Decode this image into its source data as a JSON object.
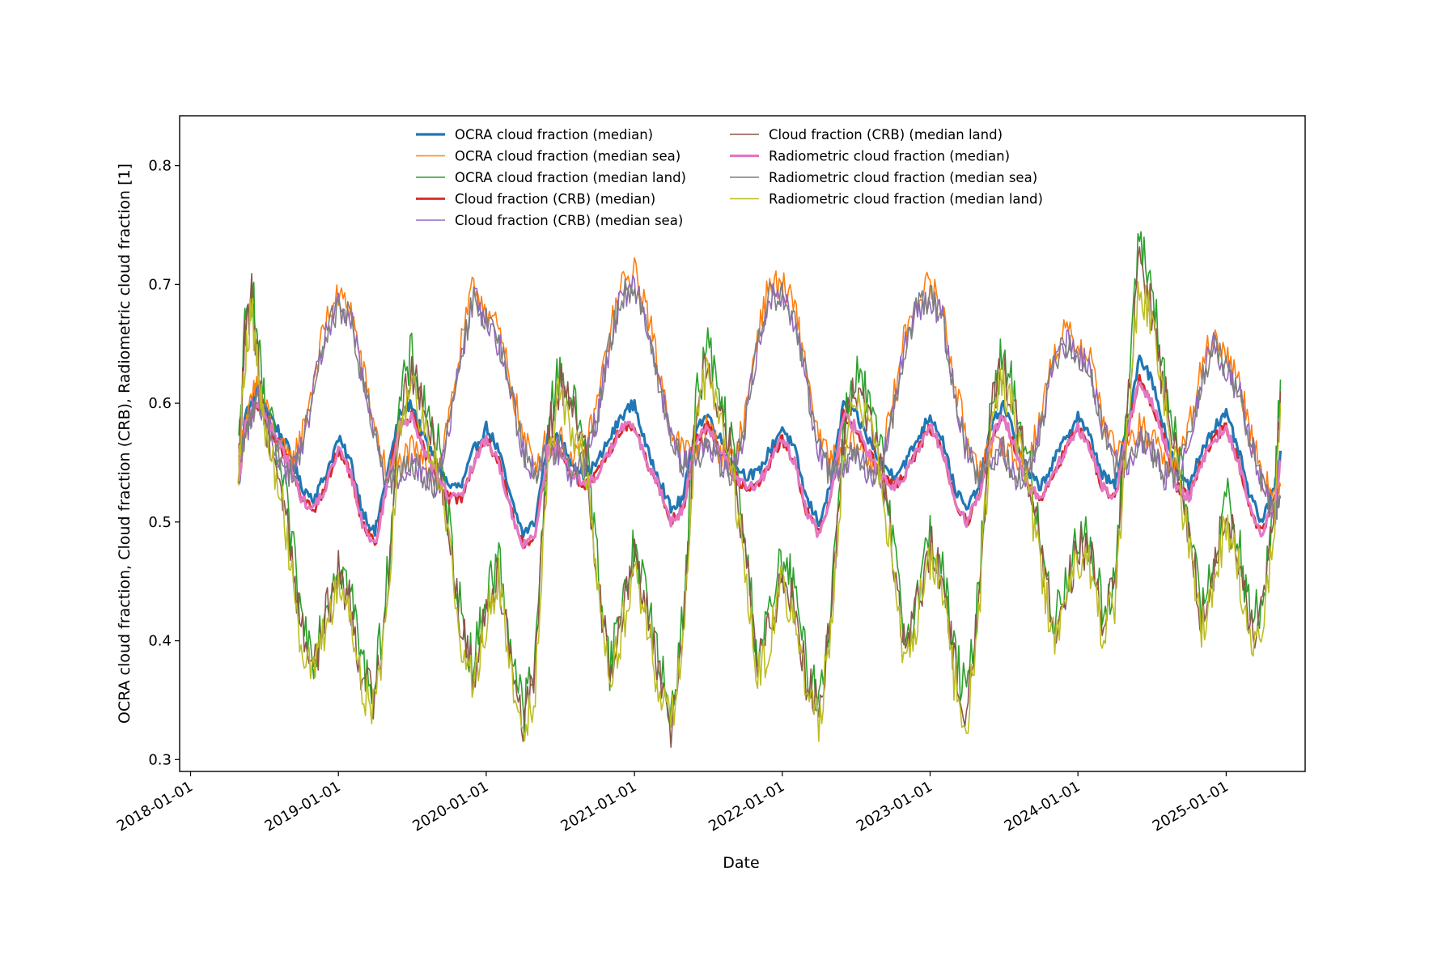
{
  "chart_data": {
    "type": "line",
    "title": "",
    "xlabel": "Date",
    "ylabel": "OCRA cloud fraction, Cloud fraction (CRB), Radiometric cloud fraction [1]",
    "x_axis": {
      "scale": "date",
      "range": [
        "2017-12-05",
        "2025-07-15"
      ],
      "ticks": [
        "2018-01-01",
        "2019-01-01",
        "2020-01-01",
        "2021-01-01",
        "2022-01-01",
        "2023-01-01",
        "2024-01-01",
        "2025-01-01"
      ]
    },
    "y_axis": {
      "range": [
        0.29,
        0.842
      ],
      "ticks": [
        0.3,
        0.4,
        0.5,
        0.6,
        0.7,
        0.8
      ],
      "tick_labels": [
        "0.3",
        "0.4",
        "0.5",
        "0.6",
        "0.7",
        "0.8"
      ]
    },
    "grid": false,
    "legend": {
      "placement": "top-center",
      "columns": 2
    },
    "x": [
      "2018-04-30",
      "2018-05-15",
      "2018-06-01",
      "2018-06-15",
      "2018-07-01",
      "2018-08-01",
      "2018-09-01",
      "2018-10-01",
      "2018-11-01",
      "2018-12-01",
      "2019-01-01",
      "2019-02-01",
      "2019-03-01",
      "2019-04-01",
      "2019-05-01",
      "2019-06-01",
      "2019-07-01",
      "2019-08-01",
      "2019-09-01",
      "2019-10-01",
      "2019-11-01",
      "2019-12-01",
      "2020-01-01",
      "2020-02-01",
      "2020-03-01",
      "2020-04-01",
      "2020-05-01",
      "2020-06-01",
      "2020-07-01",
      "2020-08-01",
      "2020-09-01",
      "2020-10-01",
      "2020-11-01",
      "2020-12-01",
      "2021-01-01",
      "2021-02-01",
      "2021-03-01",
      "2021-04-01",
      "2021-05-01",
      "2021-06-01",
      "2021-07-01",
      "2021-08-01",
      "2021-09-01",
      "2021-10-01",
      "2021-11-01",
      "2021-12-01",
      "2022-01-01",
      "2022-02-01",
      "2022-03-01",
      "2022-04-01",
      "2022-05-01",
      "2022-06-01",
      "2022-07-01",
      "2022-08-01",
      "2022-09-01",
      "2022-10-01",
      "2022-11-01",
      "2022-12-01",
      "2023-01-01",
      "2023-02-01",
      "2023-03-01",
      "2023-04-01",
      "2023-05-01",
      "2023-06-01",
      "2023-07-01",
      "2023-08-01",
      "2023-09-01",
      "2023-10-01",
      "2023-11-01",
      "2023-12-01",
      "2024-01-01",
      "2024-02-01",
      "2024-03-01",
      "2024-04-01",
      "2024-05-01",
      "2024-06-01",
      "2024-07-01",
      "2024-08-01",
      "2024-09-01",
      "2024-10-01",
      "2024-11-01",
      "2024-12-01",
      "2025-01-01",
      "2025-02-01",
      "2025-03-01",
      "2025-04-01",
      "2025-05-01",
      "2025-05-15"
    ],
    "series": [
      {
        "name": "OCRA cloud fraction (median)",
        "color": "#1f77b4",
        "width": 3.2,
        "values": [
          0.53,
          0.59,
          0.6,
          0.61,
          0.6,
          0.58,
          0.56,
          0.53,
          0.52,
          0.54,
          0.57,
          0.55,
          0.51,
          0.49,
          0.54,
          0.59,
          0.6,
          0.57,
          0.55,
          0.53,
          0.53,
          0.56,
          0.58,
          0.56,
          0.52,
          0.49,
          0.5,
          0.57,
          0.57,
          0.55,
          0.54,
          0.55,
          0.57,
          0.59,
          0.6,
          0.56,
          0.54,
          0.51,
          0.52,
          0.58,
          0.59,
          0.57,
          0.55,
          0.54,
          0.54,
          0.56,
          0.58,
          0.56,
          0.52,
          0.5,
          0.53,
          0.6,
          0.59,
          0.57,
          0.55,
          0.54,
          0.55,
          0.57,
          0.59,
          0.57,
          0.53,
          0.51,
          0.53,
          0.58,
          0.6,
          0.57,
          0.54,
          0.53,
          0.55,
          0.57,
          0.59,
          0.57,
          0.54,
          0.53,
          0.58,
          0.64,
          0.62,
          0.58,
          0.54,
          0.53,
          0.56,
          0.58,
          0.59,
          0.56,
          0.52,
          0.5,
          0.53,
          0.56
        ]
      },
      {
        "name": "OCRA cloud fraction (median sea)",
        "color": "#ff7f0e",
        "width": 1.6,
        "values": [
          0.55,
          0.58,
          0.6,
          0.62,
          0.6,
          0.57,
          0.55,
          0.57,
          0.62,
          0.67,
          0.69,
          0.68,
          0.63,
          0.58,
          0.54,
          0.55,
          0.56,
          0.55,
          0.54,
          0.59,
          0.65,
          0.7,
          0.68,
          0.66,
          0.62,
          0.57,
          0.55,
          0.57,
          0.57,
          0.55,
          0.56,
          0.6,
          0.66,
          0.7,
          0.71,
          0.68,
          0.63,
          0.58,
          0.56,
          0.56,
          0.58,
          0.56,
          0.55,
          0.59,
          0.66,
          0.7,
          0.7,
          0.68,
          0.63,
          0.57,
          0.55,
          0.56,
          0.57,
          0.55,
          0.55,
          0.6,
          0.66,
          0.69,
          0.7,
          0.68,
          0.62,
          0.57,
          0.55,
          0.56,
          0.57,
          0.55,
          0.55,
          0.59,
          0.64,
          0.66,
          0.65,
          0.64,
          0.59,
          0.56,
          0.56,
          0.58,
          0.57,
          0.55,
          0.55,
          0.58,
          0.63,
          0.66,
          0.64,
          0.62,
          0.58,
          0.54,
          0.52,
          0.53
        ]
      },
      {
        "name": "OCRA cloud fraction (median land)",
        "color": "#2ca02c",
        "width": 1.6,
        "values": [
          0.56,
          0.66,
          0.7,
          0.65,
          0.6,
          0.56,
          0.5,
          0.42,
          0.39,
          0.43,
          0.47,
          0.44,
          0.38,
          0.36,
          0.45,
          0.6,
          0.64,
          0.6,
          0.57,
          0.5,
          0.42,
          0.38,
          0.44,
          0.47,
          0.4,
          0.34,
          0.38,
          0.58,
          0.63,
          0.6,
          0.57,
          0.47,
          0.38,
          0.43,
          0.48,
          0.44,
          0.38,
          0.34,
          0.42,
          0.6,
          0.65,
          0.6,
          0.56,
          0.48,
          0.39,
          0.42,
          0.47,
          0.44,
          0.38,
          0.35,
          0.43,
          0.58,
          0.63,
          0.6,
          0.56,
          0.48,
          0.4,
          0.44,
          0.49,
          0.46,
          0.39,
          0.35,
          0.44,
          0.61,
          0.64,
          0.6,
          0.55,
          0.48,
          0.42,
          0.45,
          0.49,
          0.48,
          0.43,
          0.45,
          0.6,
          0.74,
          0.7,
          0.62,
          0.56,
          0.5,
          0.43,
          0.47,
          0.52,
          0.48,
          0.42,
          0.43,
          0.52,
          0.62
        ]
      },
      {
        "name": "Cloud fraction (CRB) (median)",
        "color": "#d62728",
        "width": 2.8,
        "values": [
          0.53,
          0.58,
          0.59,
          0.6,
          0.59,
          0.57,
          0.55,
          0.52,
          0.51,
          0.53,
          0.56,
          0.54,
          0.5,
          0.48,
          0.53,
          0.58,
          0.59,
          0.56,
          0.54,
          0.52,
          0.52,
          0.55,
          0.57,
          0.55,
          0.51,
          0.48,
          0.49,
          0.56,
          0.56,
          0.54,
          0.53,
          0.54,
          0.56,
          0.58,
          0.58,
          0.55,
          0.53,
          0.5,
          0.51,
          0.57,
          0.58,
          0.56,
          0.54,
          0.53,
          0.53,
          0.55,
          0.57,
          0.55,
          0.51,
          0.49,
          0.52,
          0.59,
          0.58,
          0.56,
          0.54,
          0.53,
          0.54,
          0.56,
          0.58,
          0.56,
          0.52,
          0.5,
          0.52,
          0.57,
          0.59,
          0.56,
          0.53,
          0.52,
          0.54,
          0.56,
          0.58,
          0.56,
          0.53,
          0.52,
          0.57,
          0.62,
          0.6,
          0.57,
          0.53,
          0.52,
          0.55,
          0.57,
          0.58,
          0.55,
          0.51,
          0.49,
          0.52,
          0.55
        ]
      },
      {
        "name": "Cloud fraction (CRB) (median sea)",
        "color": "#9467bd",
        "width": 1.6,
        "values": [
          0.54,
          0.57,
          0.59,
          0.61,
          0.59,
          0.56,
          0.54,
          0.56,
          0.61,
          0.66,
          0.68,
          0.67,
          0.62,
          0.57,
          0.53,
          0.54,
          0.55,
          0.54,
          0.53,
          0.58,
          0.64,
          0.69,
          0.67,
          0.65,
          0.61,
          0.56,
          0.54,
          0.56,
          0.56,
          0.54,
          0.55,
          0.59,
          0.65,
          0.69,
          0.7,
          0.67,
          0.62,
          0.57,
          0.55,
          0.55,
          0.57,
          0.55,
          0.54,
          0.58,
          0.65,
          0.69,
          0.69,
          0.67,
          0.62,
          0.56,
          0.54,
          0.55,
          0.56,
          0.54,
          0.54,
          0.59,
          0.65,
          0.68,
          0.69,
          0.67,
          0.61,
          0.56,
          0.54,
          0.55,
          0.56,
          0.54,
          0.54,
          0.58,
          0.63,
          0.65,
          0.64,
          0.63,
          0.58,
          0.55,
          0.55,
          0.57,
          0.56,
          0.54,
          0.54,
          0.57,
          0.62,
          0.65,
          0.63,
          0.61,
          0.57,
          0.53,
          0.51,
          0.52
        ]
      },
      {
        "name": "Cloud fraction (CRB) (median land)",
        "color": "#8c564b",
        "width": 1.6,
        "values": [
          0.55,
          0.65,
          0.69,
          0.64,
          0.59,
          0.55,
          0.49,
          0.41,
          0.38,
          0.42,
          0.46,
          0.43,
          0.37,
          0.35,
          0.44,
          0.59,
          0.63,
          0.59,
          0.56,
          0.49,
          0.41,
          0.37,
          0.43,
          0.46,
          0.39,
          0.33,
          0.37,
          0.57,
          0.62,
          0.59,
          0.56,
          0.46,
          0.37,
          0.42,
          0.47,
          0.43,
          0.37,
          0.33,
          0.41,
          0.59,
          0.64,
          0.59,
          0.55,
          0.47,
          0.38,
          0.41,
          0.46,
          0.43,
          0.37,
          0.34,
          0.42,
          0.57,
          0.62,
          0.59,
          0.55,
          0.47,
          0.39,
          0.43,
          0.48,
          0.45,
          0.38,
          0.34,
          0.43,
          0.6,
          0.63,
          0.59,
          0.54,
          0.47,
          0.41,
          0.44,
          0.48,
          0.47,
          0.42,
          0.44,
          0.59,
          0.72,
          0.68,
          0.61,
          0.55,
          0.49,
          0.42,
          0.46,
          0.51,
          0.47,
          0.41,
          0.42,
          0.51,
          0.61
        ]
      },
      {
        "name": "Radiometric cloud fraction (median)",
        "color": "#e377c2",
        "width": 3.2,
        "values": [
          0.53,
          0.58,
          0.59,
          0.6,
          0.59,
          0.57,
          0.55,
          0.52,
          0.51,
          0.53,
          0.56,
          0.54,
          0.5,
          0.48,
          0.53,
          0.58,
          0.59,
          0.56,
          0.54,
          0.52,
          0.52,
          0.55,
          0.57,
          0.55,
          0.51,
          0.48,
          0.49,
          0.56,
          0.56,
          0.54,
          0.53,
          0.54,
          0.56,
          0.58,
          0.58,
          0.55,
          0.53,
          0.5,
          0.51,
          0.57,
          0.58,
          0.56,
          0.54,
          0.53,
          0.53,
          0.55,
          0.57,
          0.55,
          0.51,
          0.49,
          0.52,
          0.59,
          0.58,
          0.56,
          0.54,
          0.53,
          0.54,
          0.56,
          0.58,
          0.56,
          0.52,
          0.5,
          0.52,
          0.57,
          0.59,
          0.56,
          0.53,
          0.52,
          0.54,
          0.56,
          0.58,
          0.56,
          0.53,
          0.52,
          0.57,
          0.62,
          0.6,
          0.57,
          0.53,
          0.52,
          0.55,
          0.57,
          0.58,
          0.55,
          0.51,
          0.49,
          0.52,
          0.55
        ]
      },
      {
        "name": "Radiometric cloud fraction (median sea)",
        "color": "#7f7f7f",
        "width": 1.6,
        "values": [
          0.54,
          0.57,
          0.59,
          0.61,
          0.59,
          0.56,
          0.54,
          0.56,
          0.61,
          0.66,
          0.68,
          0.67,
          0.62,
          0.57,
          0.53,
          0.54,
          0.55,
          0.54,
          0.53,
          0.58,
          0.64,
          0.69,
          0.67,
          0.65,
          0.61,
          0.56,
          0.54,
          0.56,
          0.56,
          0.54,
          0.55,
          0.59,
          0.65,
          0.69,
          0.7,
          0.67,
          0.62,
          0.57,
          0.55,
          0.55,
          0.57,
          0.55,
          0.54,
          0.58,
          0.65,
          0.69,
          0.69,
          0.67,
          0.62,
          0.56,
          0.54,
          0.55,
          0.56,
          0.54,
          0.54,
          0.59,
          0.65,
          0.68,
          0.69,
          0.67,
          0.61,
          0.56,
          0.54,
          0.55,
          0.56,
          0.54,
          0.54,
          0.58,
          0.63,
          0.65,
          0.64,
          0.63,
          0.58,
          0.55,
          0.55,
          0.57,
          0.56,
          0.54,
          0.54,
          0.57,
          0.62,
          0.65,
          0.63,
          0.61,
          0.57,
          0.53,
          0.51,
          0.52
        ]
      },
      {
        "name": "Radiometric cloud fraction (median land)",
        "color": "#bcbd22",
        "width": 1.6,
        "values": [
          0.55,
          0.64,
          0.68,
          0.63,
          0.58,
          0.54,
          0.48,
          0.4,
          0.37,
          0.41,
          0.45,
          0.42,
          0.36,
          0.34,
          0.43,
          0.58,
          0.62,
          0.58,
          0.55,
          0.48,
          0.4,
          0.36,
          0.42,
          0.45,
          0.38,
          0.32,
          0.36,
          0.56,
          0.61,
          0.58,
          0.55,
          0.45,
          0.36,
          0.41,
          0.46,
          0.42,
          0.36,
          0.33,
          0.4,
          0.58,
          0.63,
          0.58,
          0.54,
          0.46,
          0.37,
          0.4,
          0.45,
          0.42,
          0.36,
          0.33,
          0.41,
          0.56,
          0.61,
          0.58,
          0.54,
          0.46,
          0.38,
          0.42,
          0.47,
          0.44,
          0.37,
          0.33,
          0.42,
          0.59,
          0.62,
          0.58,
          0.53,
          0.46,
          0.4,
          0.43,
          0.47,
          0.46,
          0.41,
          0.43,
          0.58,
          0.7,
          0.67,
          0.6,
          0.54,
          0.48,
          0.41,
          0.45,
          0.5,
          0.46,
          0.4,
          0.41,
          0.5,
          0.6
        ]
      }
    ]
  }
}
